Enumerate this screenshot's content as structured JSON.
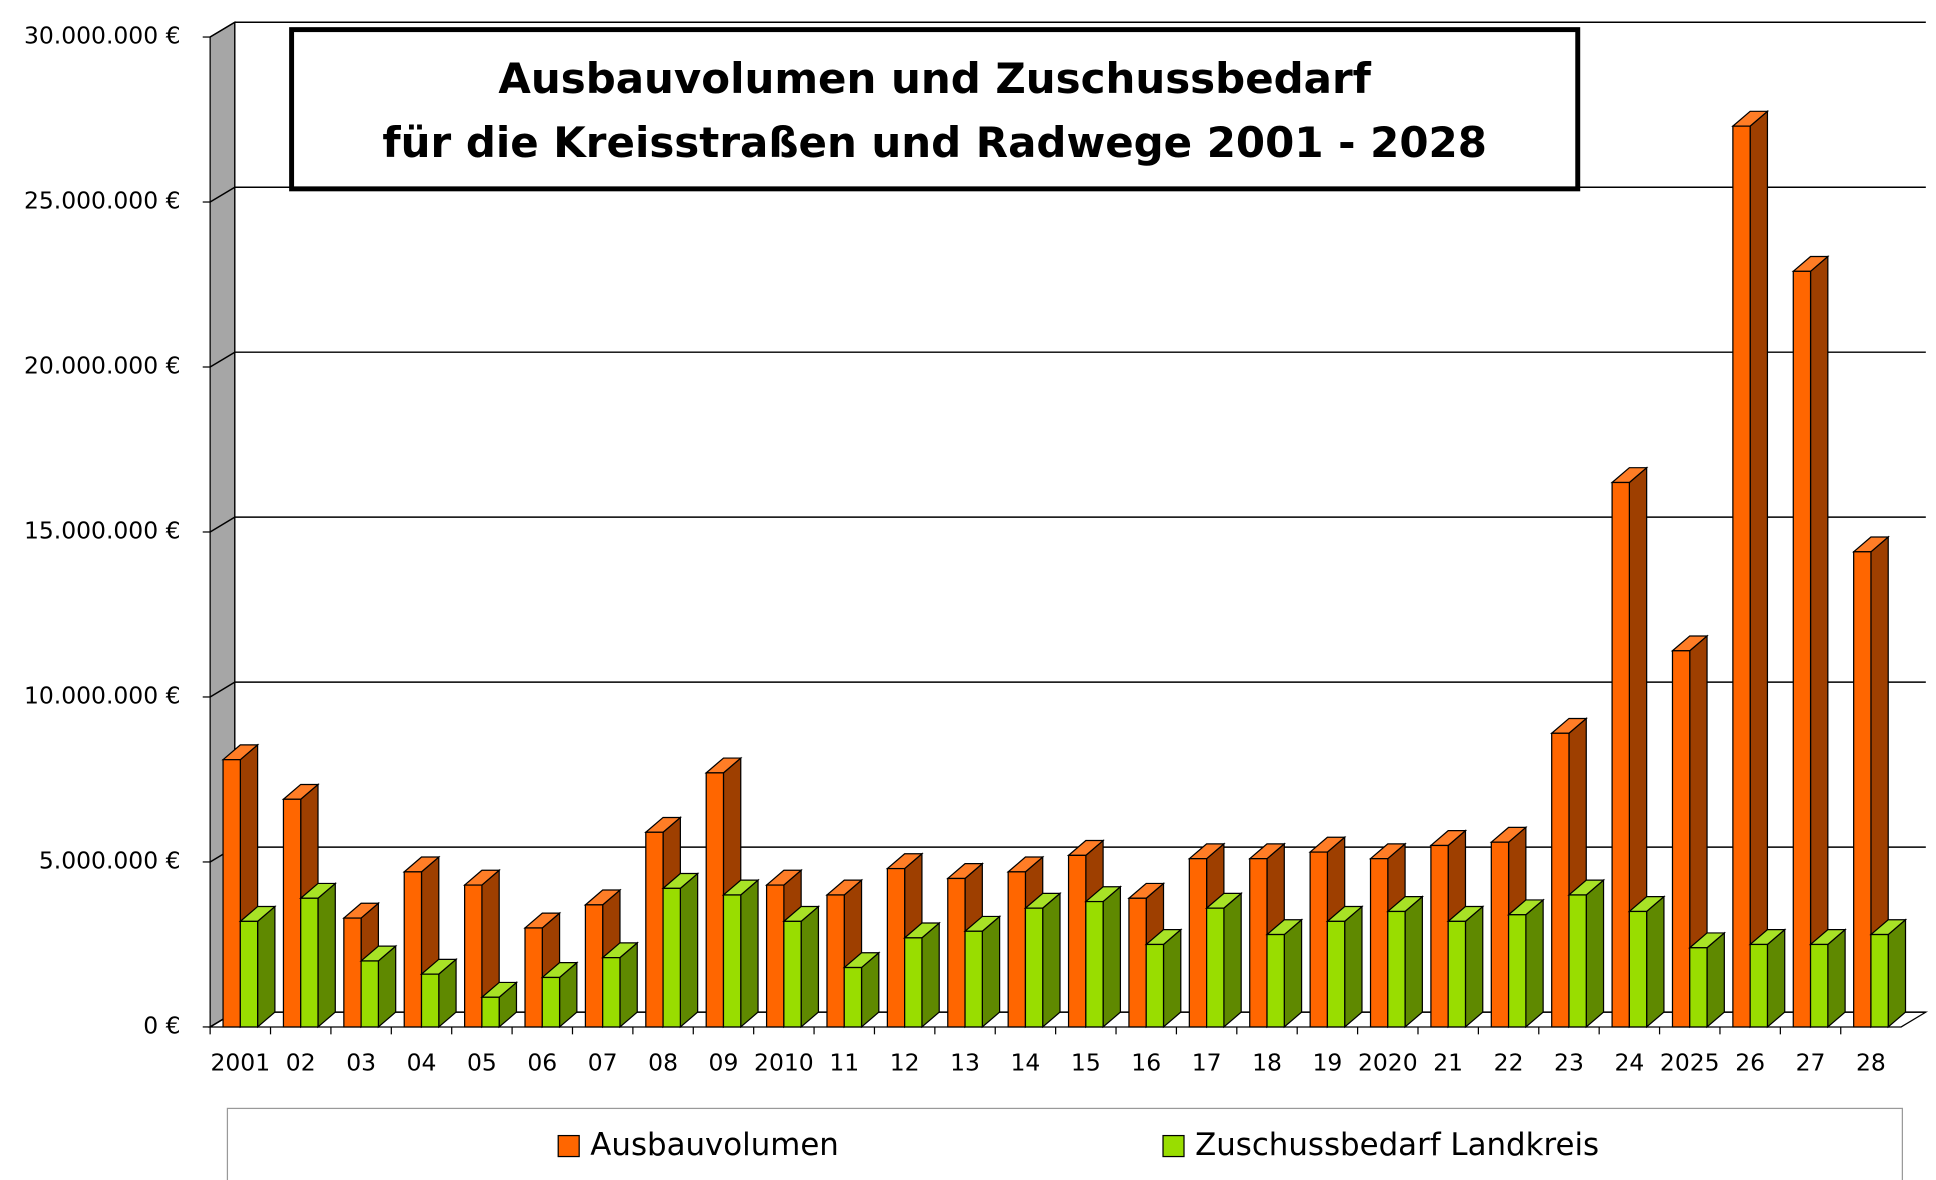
{
  "chart_data": {
    "type": "bar",
    "title": [
      "Ausbauvolumen und Zuschussbedarf",
      "für die Kreisstraßen und Radwege 2001 - 2028"
    ],
    "categories": [
      "2001",
      "02",
      "03",
      "04",
      "05",
      "06",
      "07",
      "08",
      "09",
      "2010",
      "11",
      "12",
      "13",
      "14",
      "15",
      "16",
      "17",
      "18",
      "19",
      "2020",
      "21",
      "22",
      "23",
      "24",
      "2025",
      "26",
      "27",
      "28"
    ],
    "series": [
      {
        "name": "Ausbauvolumen",
        "color": "#ff6600",
        "values": [
          8100000,
          6900000,
          3300000,
          4700000,
          4300000,
          3000000,
          3700000,
          5900000,
          7700000,
          4300000,
          4000000,
          4800000,
          4500000,
          4700000,
          5200000,
          3900000,
          5100000,
          5100000,
          5300000,
          5100000,
          5500000,
          5600000,
          8900000,
          16500000,
          11400000,
          27300000,
          22900000,
          14400000
        ]
      },
      {
        "name": "Zuschussbedarf Landkreis",
        "color": "#99dd00",
        "values": [
          3200000,
          3900000,
          2000000,
          1600000,
          900000,
          1500000,
          2100000,
          4200000,
          4000000,
          3200000,
          1800000,
          2700000,
          2900000,
          3600000,
          3800000,
          2500000,
          3600000,
          2800000,
          3200000,
          3500000,
          3200000,
          3400000,
          4000000,
          3500000,
          2400000,
          2500000,
          2500000,
          2800000
        ]
      }
    ],
    "ylim": [
      0,
      30000000
    ],
    "yticks": [
      {
        "value": 0,
        "label": "0 €"
      },
      {
        "value": 5000000,
        "label": "5.000.000 €"
      },
      {
        "value": 10000000,
        "label": "10.000.000 €"
      },
      {
        "value": 15000000,
        "label": "15.000.000 €"
      },
      {
        "value": 20000000,
        "label": "20.000.000 €"
      },
      {
        "value": 25000000,
        "label": "25.000.000 €"
      },
      {
        "value": 30000000,
        "label": "30.000.000 €"
      }
    ],
    "grid": true,
    "legend": "bottom"
  }
}
